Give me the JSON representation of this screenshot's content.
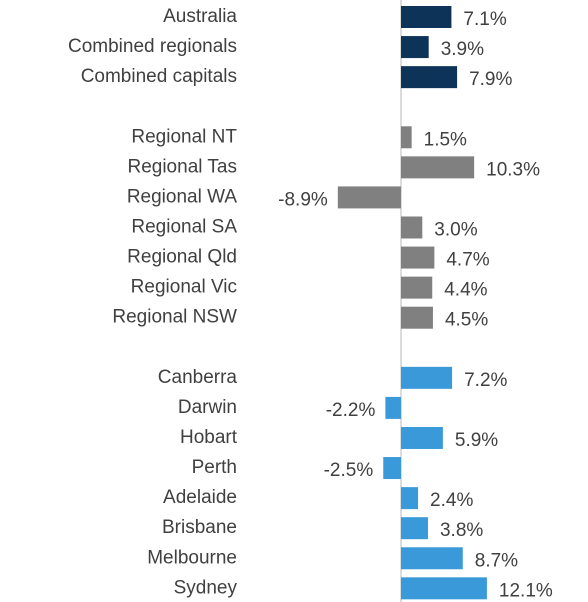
{
  "chart_data": {
    "type": "bar",
    "orientation": "horizontal",
    "categories": [
      "Australia",
      "Combined regionals",
      "Combined capitals",
      null,
      "Regional NT",
      "Regional Tas",
      "Regional WA",
      "Regional SA",
      "Regional Qld",
      "Regional Vic",
      "Regional NSW",
      null,
      "Canberra",
      "Darwin",
      "Hobart",
      "Perth",
      "Adelaide",
      "Brisbane",
      "Melbourne",
      "Sydney"
    ],
    "values": [
      7.1,
      3.9,
      7.9,
      null,
      1.5,
      10.3,
      -8.9,
      3.0,
      4.7,
      4.4,
      4.5,
      null,
      7.2,
      -2.2,
      5.9,
      -2.5,
      2.4,
      3.8,
      8.7,
      12.1
    ],
    "value_labels": [
      "7.1%",
      "3.9%",
      "7.9%",
      null,
      "1.5%",
      "10.3%",
      "-8.9%",
      "3.0%",
      "4.7%",
      "4.4%",
      "4.5%",
      null,
      "7.2%",
      "-2.2%",
      "5.9%",
      "-2.5%",
      "2.4%",
      "3.8%",
      "8.7%",
      "12.1%"
    ],
    "colors": [
      "#0e3358",
      "#0e3358",
      "#0e3358",
      null,
      "#808080",
      "#808080",
      "#808080",
      "#808080",
      "#808080",
      "#808080",
      "#808080",
      null,
      "#3a9ad9",
      "#3a9ad9",
      "#3a9ad9",
      "#3a9ad9",
      "#3a9ad9",
      "#3a9ad9",
      "#3a9ad9",
      "#3a9ad9"
    ]
  }
}
